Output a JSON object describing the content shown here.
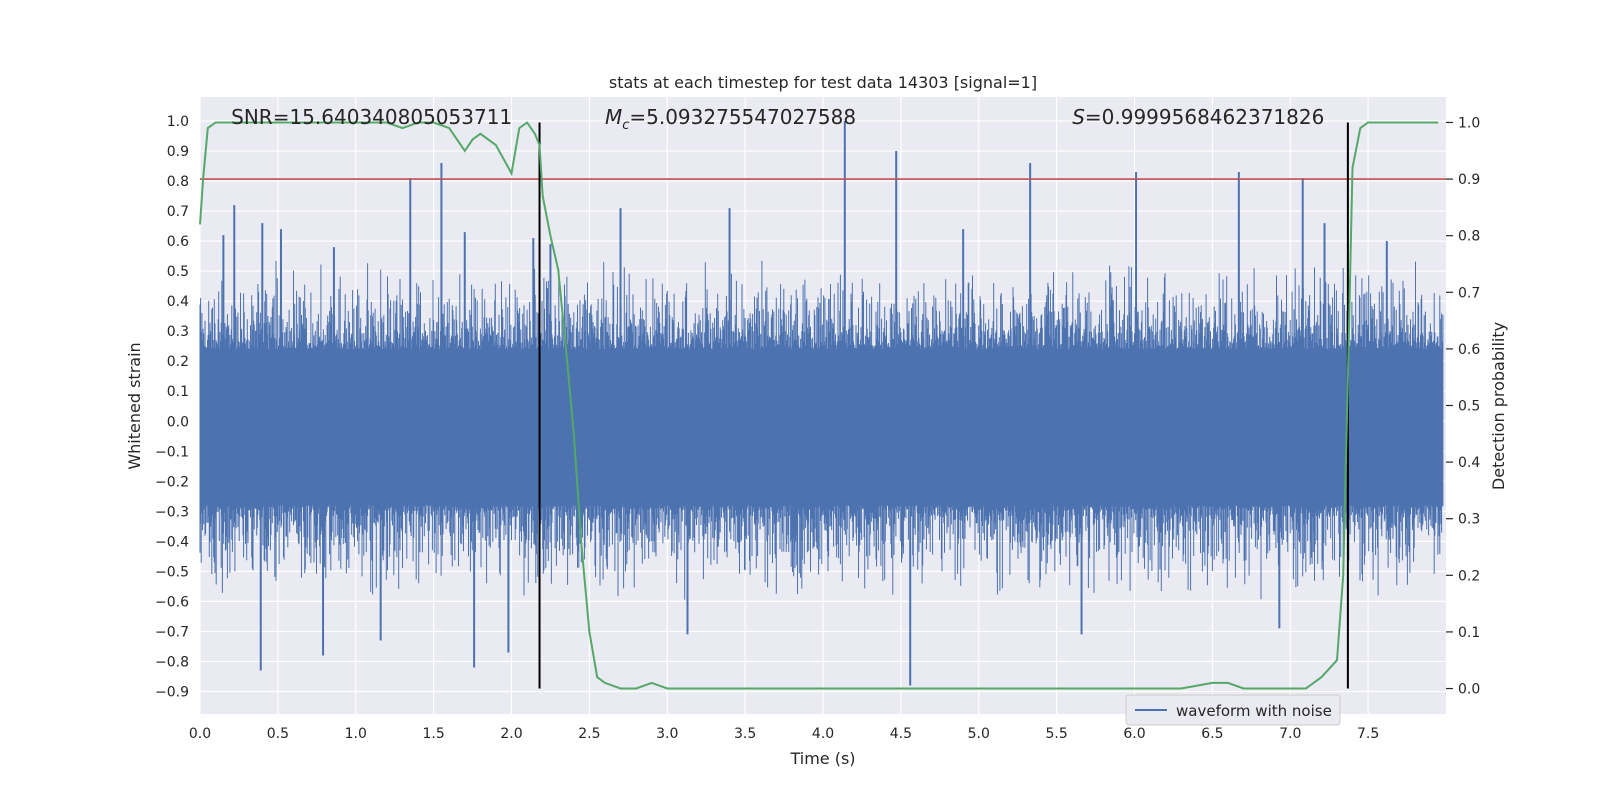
{
  "chart_data": {
    "type": "line",
    "title": "stats at each timestep for test data 14303 [signal=1]",
    "xlabel": "Time (s)",
    "ylabel_left": "Whitened strain",
    "ylabel_right": "Detection probability",
    "xlim": [
      0.0,
      8.0
    ],
    "ylim_left": [
      -0.975,
      1.08
    ],
    "ylim_right": [
      -0.045,
      1.045
    ],
    "x_ticks": [
      0.0,
      0.5,
      1.0,
      1.5,
      2.0,
      2.5,
      3.0,
      3.5,
      4.0,
      4.5,
      5.0,
      5.5,
      6.0,
      6.5,
      7.0,
      7.5
    ],
    "x_tick_labels": [
      "0.0",
      "0.5",
      "1.0",
      "1.5",
      "2.0",
      "2.5",
      "3.0",
      "3.5",
      "4.0",
      "4.5",
      "5.0",
      "5.5",
      "6.0",
      "6.5",
      "7.0",
      "7.5"
    ],
    "y_left_ticks": [
      1.0,
      0.9,
      0.8,
      0.7,
      0.6,
      0.5,
      0.4,
      0.3,
      0.2,
      0.1,
      0.0,
      -0.1,
      -0.2,
      -0.3,
      -0.4,
      -0.5,
      -0.6,
      -0.7,
      -0.8,
      -0.9
    ],
    "y_left_tick_labels": [
      "1.0",
      "0.9",
      "0.8",
      "0.7",
      "0.6",
      "0.5",
      "0.4",
      "0.3",
      "0.2",
      "0.1",
      "0.0",
      "−0.1",
      "−0.2",
      "−0.3",
      "−0.4",
      "−0.5",
      "−0.6",
      "−0.7",
      "−0.8",
      "−0.9"
    ],
    "y_right_ticks": [
      1.0,
      0.9,
      0.8,
      0.7,
      0.6,
      0.5,
      0.4,
      0.3,
      0.2,
      0.1,
      0.0
    ],
    "y_right_tick_labels": [
      "1.0",
      "0.9",
      "0.8",
      "0.7",
      "0.6",
      "0.5",
      "0.4",
      "0.3",
      "0.2",
      "0.1",
      "0.0"
    ],
    "threshold": {
      "axis": "right",
      "value": 0.9,
      "color": "#c44e52"
    },
    "vlines": [
      {
        "x": 2.18,
        "ymin_right": 0.0,
        "ymax_right": 1.0,
        "color": "#000000"
      },
      {
        "x": 7.37,
        "ymin_right": 0.0,
        "ymax_right": 1.0,
        "color": "#000000"
      }
    ],
    "annotations": [
      {
        "prefix": "SNR",
        "text": "=15.640340805053711",
        "x": 0.2
      },
      {
        "prefix": "M",
        "sub": "c",
        "text": "=5.093275547027588",
        "x": 2.6
      },
      {
        "prefix": "S",
        "text": "=0.9999568462371826",
        "x": 5.6
      }
    ],
    "legend": {
      "label": "waveform with noise",
      "location": "lower right"
    },
    "waveform": {
      "name": "waveform with noise",
      "axis": "left",
      "color": "#4c72b0",
      "band": [
        -0.28,
        0.24
      ],
      "peaks": [
        {
          "x": 0.15,
          "y": 0.62
        },
        {
          "x": 0.22,
          "y": 0.72
        },
        {
          "x": 0.4,
          "y": 0.66
        },
        {
          "x": 0.39,
          "y": -0.83
        },
        {
          "x": 0.52,
          "y": 0.64
        },
        {
          "x": 0.79,
          "y": -0.78
        },
        {
          "x": 0.86,
          "y": 0.58
        },
        {
          "x": 1.16,
          "y": -0.73
        },
        {
          "x": 1.35,
          "y": 0.81
        },
        {
          "x": 1.55,
          "y": 0.86
        },
        {
          "x": 1.7,
          "y": 0.63
        },
        {
          "x": 1.76,
          "y": -0.82
        },
        {
          "x": 1.98,
          "y": -0.77
        },
        {
          "x": 2.14,
          "y": 0.61
        },
        {
          "x": 2.25,
          "y": 0.59
        },
        {
          "x": 2.7,
          "y": 0.71
        },
        {
          "x": 3.13,
          "y": -0.71
        },
        {
          "x": 3.4,
          "y": 0.71
        },
        {
          "x": 4.14,
          "y": 1.0
        },
        {
          "x": 4.47,
          "y": 0.9
        },
        {
          "x": 4.56,
          "y": -0.88
        },
        {
          "x": 4.9,
          "y": 0.64
        },
        {
          "x": 5.33,
          "y": 0.86
        },
        {
          "x": 5.66,
          "y": -0.71
        },
        {
          "x": 6.01,
          "y": 0.83
        },
        {
          "x": 6.67,
          "y": 0.83
        },
        {
          "x": 6.93,
          "y": -0.69
        },
        {
          "x": 7.08,
          "y": 0.81
        },
        {
          "x": 7.22,
          "y": 0.66
        },
        {
          "x": 7.62,
          "y": 0.6
        }
      ]
    },
    "probability": {
      "name": "detection probability",
      "axis": "right",
      "color": "#55a868",
      "x": [
        0.0,
        0.02,
        0.05,
        0.1,
        0.2,
        0.3,
        0.5,
        0.7,
        0.9,
        1.0,
        1.2,
        1.3,
        1.4,
        1.5,
        1.6,
        1.7,
        1.75,
        1.8,
        1.9,
        2.0,
        2.05,
        2.1,
        2.15,
        2.18,
        2.2,
        2.25,
        2.3,
        2.35,
        2.4,
        2.45,
        2.5,
        2.55,
        2.6,
        2.7,
        2.8,
        2.9,
        3.0,
        3.5,
        4.0,
        4.5,
        5.0,
        5.5,
        6.0,
        6.3,
        6.5,
        6.6,
        6.7,
        7.0,
        7.1,
        7.2,
        7.3,
        7.34,
        7.37,
        7.4,
        7.45,
        7.5,
        7.7,
        7.95
      ],
      "y": [
        0.82,
        0.9,
        0.99,
        1.0,
        1.0,
        1.0,
        1.0,
        1.0,
        1.0,
        1.0,
        1.0,
        0.99,
        1.0,
        1.0,
        0.99,
        0.95,
        0.97,
        0.98,
        0.96,
        0.91,
        0.99,
        1.0,
        0.98,
        0.96,
        0.87,
        0.8,
        0.74,
        0.6,
        0.45,
        0.25,
        0.1,
        0.02,
        0.01,
        0.0,
        0.0,
        0.01,
        0.0,
        0.0,
        0.0,
        0.0,
        0.0,
        0.0,
        0.0,
        0.0,
        0.01,
        0.01,
        0.0,
        0.0,
        0.0,
        0.02,
        0.05,
        0.2,
        0.55,
        0.92,
        0.99,
        1.0,
        1.0,
        1.0
      ]
    }
  }
}
